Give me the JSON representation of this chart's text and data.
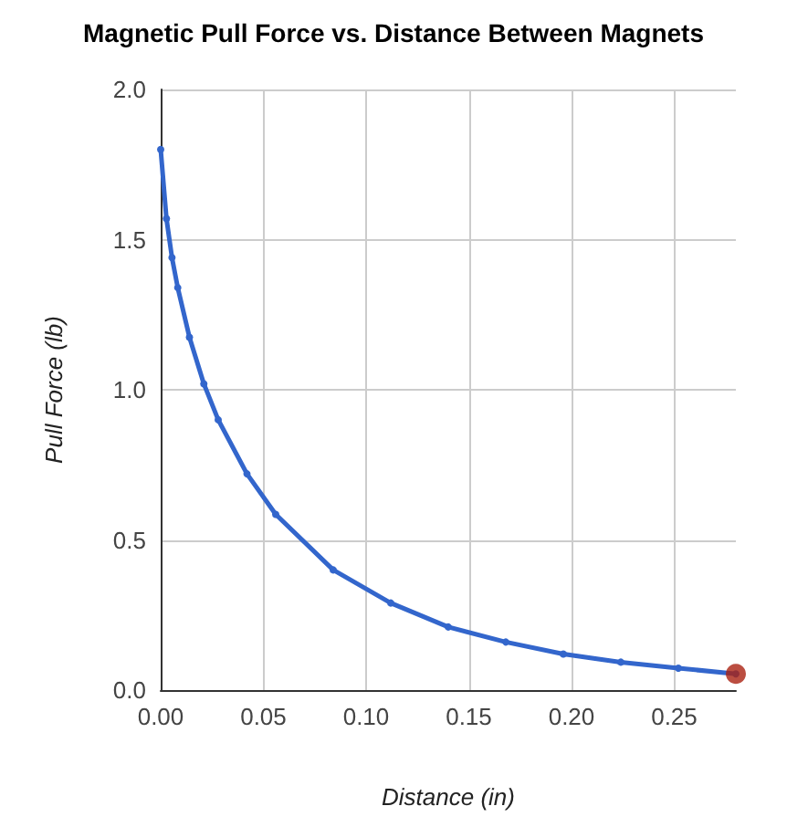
{
  "chart_data": {
    "type": "line",
    "title": "Magnetic Pull Force vs. Distance Between Magnets",
    "xlabel": "Distance (in)",
    "ylabel": "Pull Force (lb)",
    "series": [
      {
        "color": "#3366cc",
        "x": [
          0,
          0.0028,
          0.0055,
          0.0083,
          0.014,
          0.021,
          0.028,
          0.042,
          0.056,
          0.084,
          0.112,
          0.14,
          0.168,
          0.196,
          0.224,
          0.252,
          0.28
        ],
        "values": [
          1.8,
          1.57,
          1.44,
          1.34,
          1.175,
          1.02,
          0.9,
          0.72,
          0.585,
          0.4,
          0.29,
          0.21,
          0.16,
          0.12,
          0.093,
          0.073,
          0.054
        ]
      },
      {
        "type": "scatter",
        "color": "#aa2211",
        "x": [
          0.28
        ],
        "values": [
          0.054
        ]
      }
    ],
    "xlim": [
      0,
      0.28
    ],
    "xticks": [
      {
        "value": 0,
        "label": "0.00"
      },
      {
        "value": 0.05,
        "label": "0.05"
      },
      {
        "value": 0.1,
        "label": "0.10"
      },
      {
        "value": 0.15,
        "label": "0.15"
      },
      {
        "value": 0.2,
        "label": "0.20"
      },
      {
        "value": 0.25,
        "label": "0.25"
      }
    ],
    "ylim": [
      0,
      2
    ],
    "yticks": [
      {
        "value": 0,
        "label": "0.0"
      },
      {
        "value": 0.5,
        "label": "0.5"
      },
      {
        "value": 1,
        "label": "1.0"
      },
      {
        "value": 1.5,
        "label": "1.5"
      },
      {
        "value": 2,
        "label": "2.0"
      }
    ],
    "grid": true,
    "marker": "circle",
    "line_style": "solid"
  }
}
